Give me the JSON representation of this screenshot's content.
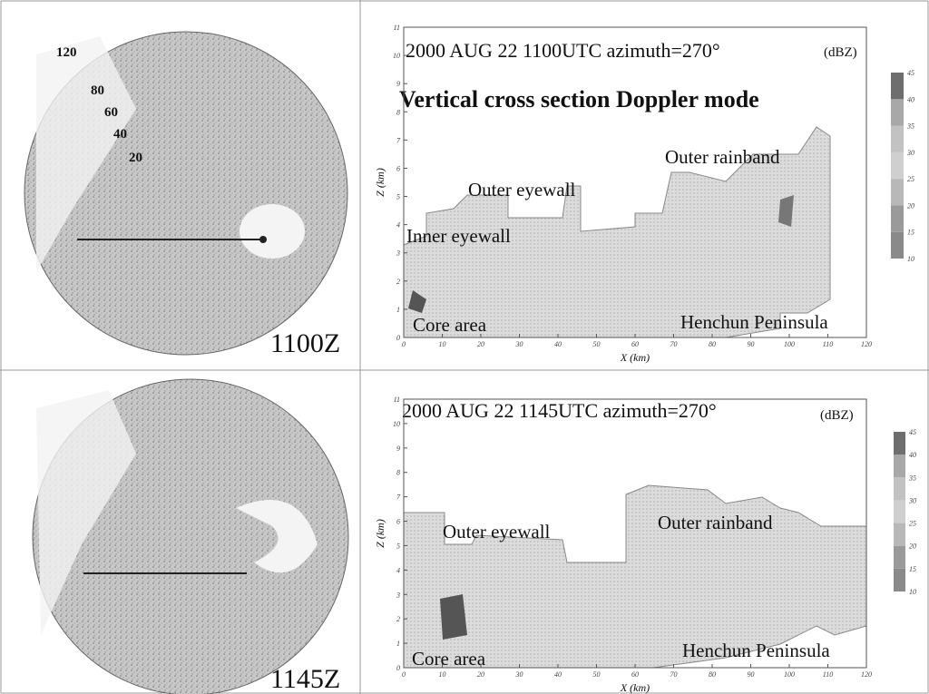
{
  "panels": [
    {
      "radar": {
        "time": "1100Z",
        "range_labels": [
          "120",
          "80",
          "60",
          "40",
          "20"
        ]
      },
      "section": {
        "title": "2000 AUG 22 1100UTC azimuth=270°",
        "unit": "(dBZ)",
        "subtitle": "Vertical cross section Doppler mode",
        "annotations": [
          "Outer rainband",
          "Outer eyewall",
          "Inner eyewall",
          "Core area",
          "Henchun Peninsula"
        ],
        "x_label": "X (km)",
        "y_label": "Z (km)",
        "xticks": [
          0,
          10,
          20,
          30,
          40,
          50,
          60,
          70,
          80,
          90,
          100,
          110,
          120
        ],
        "zticks": [
          0,
          1,
          2,
          3,
          4,
          5,
          6,
          7,
          8,
          9,
          10,
          11
        ],
        "colorbar_ticks": [
          10,
          15,
          20,
          25,
          30,
          35,
          40,
          45
        ]
      }
    },
    {
      "radar": {
        "time": "1145Z"
      },
      "section": {
        "title": "2000 AUG 22 1145UTC azimuth=270°",
        "unit": "(dBZ)",
        "annotations": [
          "Outer rainband",
          "Outer eyewall",
          "Core area",
          "Henchun Peninsula"
        ],
        "x_label": "X (km)",
        "y_label": "Z (km)",
        "xticks": [
          0,
          10,
          20,
          30,
          40,
          50,
          60,
          70,
          80,
          90,
          100,
          110,
          120
        ],
        "zticks": [
          0,
          1,
          2,
          3,
          4,
          5,
          6,
          7,
          8,
          9,
          10,
          11
        ],
        "colorbar_ticks": [
          10,
          15,
          20,
          25,
          30,
          35,
          40,
          45
        ]
      }
    }
  ]
}
